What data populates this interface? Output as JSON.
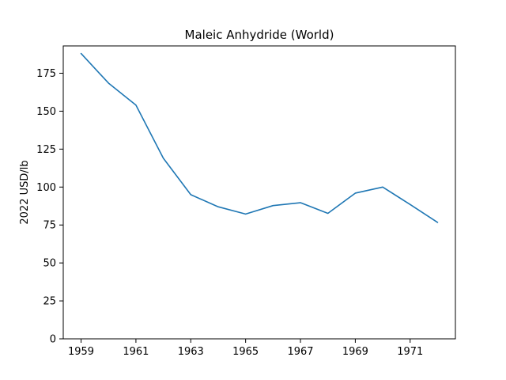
{
  "chart_data": {
    "type": "line",
    "title": "Maleic Anhydride (World)",
    "xlabel": "",
    "ylabel": "2022 USD/lb",
    "xlim": [
      1958.35,
      1972.65
    ],
    "ylim": [
      0,
      193
    ],
    "x_ticks": [
      1959,
      1961,
      1963,
      1965,
      1967,
      1969,
      1971
    ],
    "x_tick_labels": [
      "1959",
      "1961",
      "1963",
      "1965",
      "1967",
      "1969",
      "1971"
    ],
    "y_ticks": [
      0,
      25,
      50,
      75,
      100,
      125,
      150,
      175
    ],
    "y_tick_labels": [
      "0",
      "25",
      "50",
      "75",
      "100",
      "125",
      "150",
      "175"
    ],
    "grid": false,
    "series": [
      {
        "color": "#1f77b4",
        "x": [
          1959,
          1960,
          1961,
          1962,
          1963,
          1964,
          1965,
          1966,
          1967,
          1968,
          1969,
          1970,
          1971,
          1972
        ],
        "y": [
          188,
          168.5,
          154,
          119,
          95,
          87,
          82.2,
          87.8,
          89.7,
          82.7,
          96,
          100,
          88.5,
          76.7
        ]
      }
    ]
  }
}
